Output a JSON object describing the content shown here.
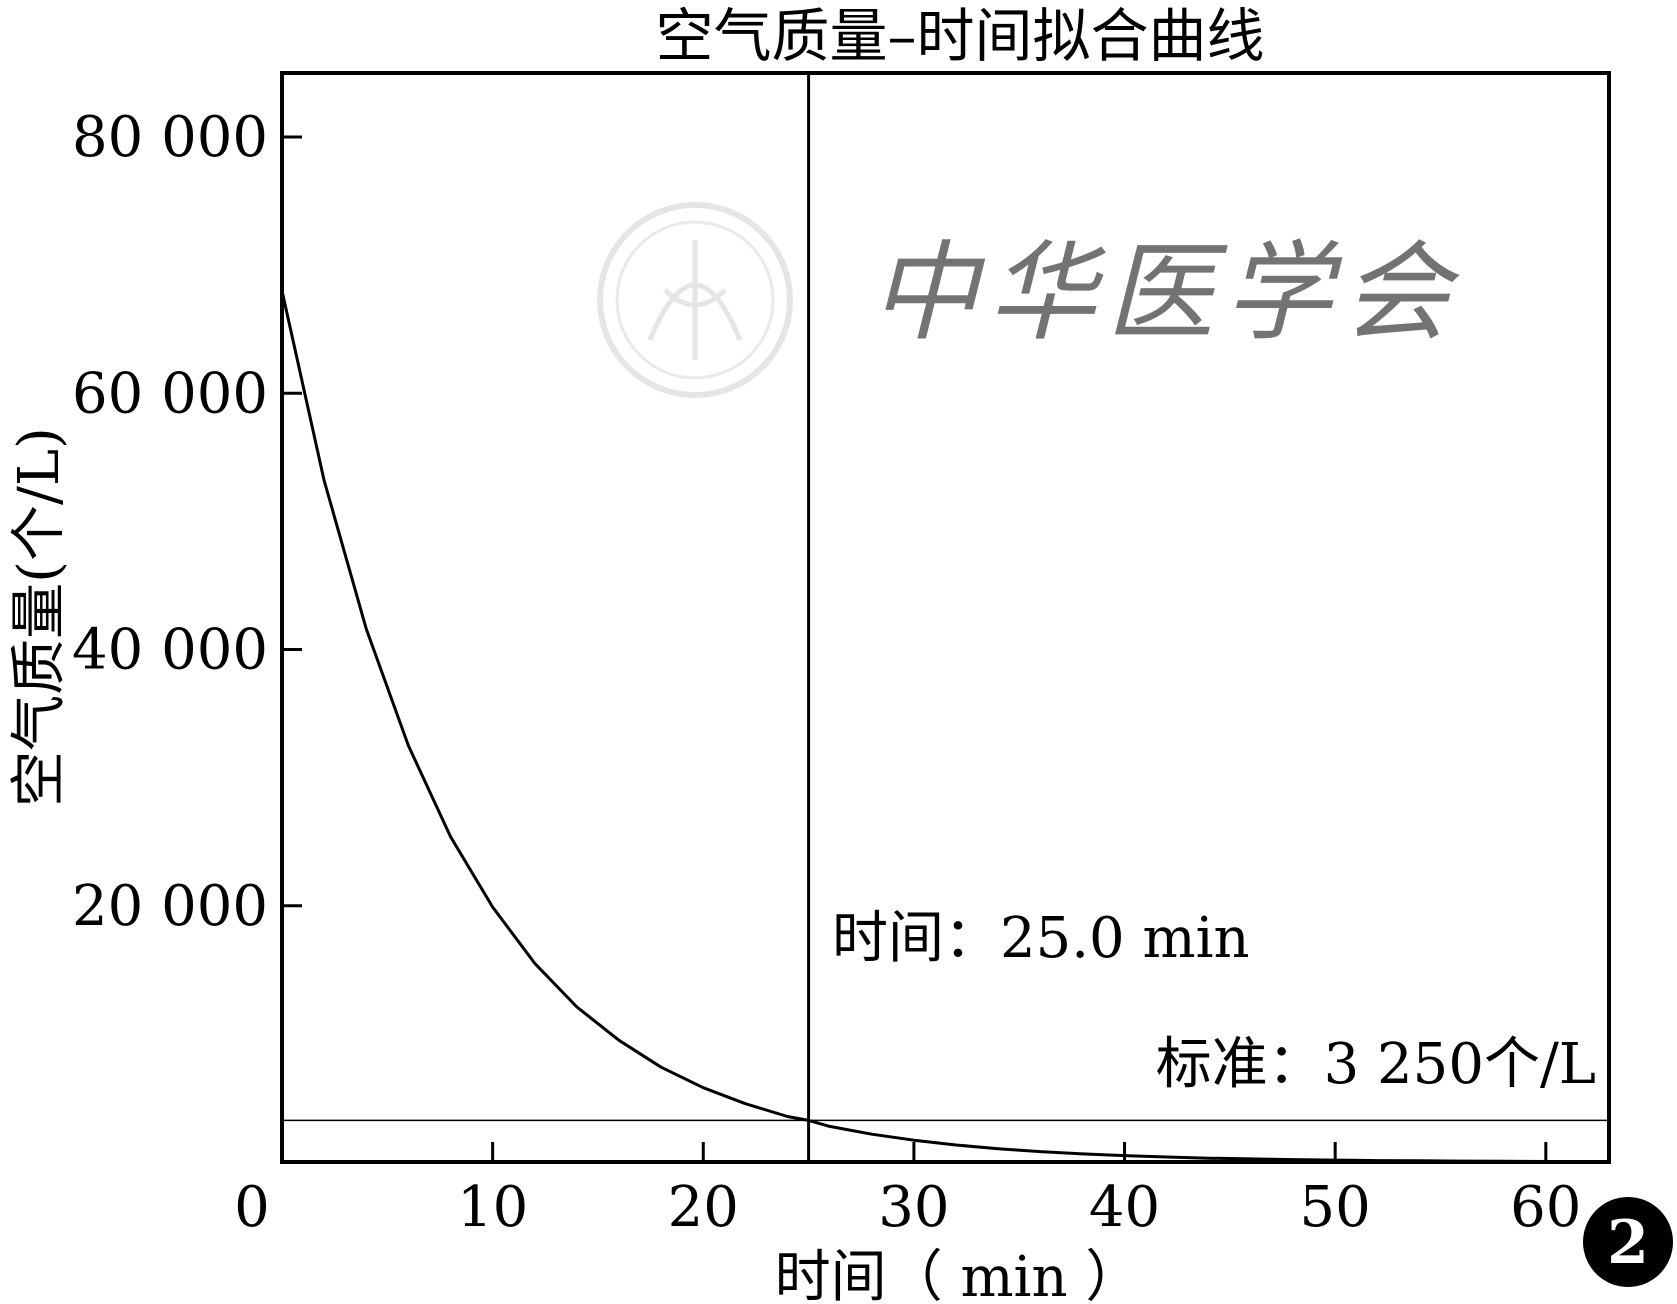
{
  "chart_data": {
    "type": "line",
    "title": "空气质量–时间拟合曲线",
    "xlabel": "时间（ min ）",
    "ylabel": "空气质量(个/L)",
    "xlim": [
      0,
      63
    ],
    "ylim": [
      0,
      85000
    ],
    "x_ticks": [
      0,
      10,
      20,
      30,
      40,
      50,
      60
    ],
    "x_tick_labels": [
      "0",
      "10",
      "20",
      "30",
      "40",
      "50",
      "60"
    ],
    "y_ticks": [
      20000,
      40000,
      60000,
      80000
    ],
    "y_tick_labels": [
      "20  000",
      "40 000",
      "60 000",
      "80 000"
    ],
    "grid": false,
    "series": [
      {
        "x": [
          0,
          2,
          4,
          6,
          8,
          10,
          12,
          14,
          16,
          18,
          20,
          22,
          24,
          25,
          26,
          28,
          30,
          32,
          34,
          36,
          38,
          40,
          42,
          44,
          46,
          48,
          50,
          52,
          54,
          56,
          58,
          60,
          62,
          63
        ],
        "values": [
          68000,
          53200,
          41600,
          32500,
          25400,
          19900,
          15500,
          12100,
          9500,
          7400,
          5800,
          4550,
          3550,
          3250,
          2780,
          2170,
          1700,
          1330,
          1040,
          810,
          630,
          500,
          390,
          300,
          240,
          190,
          145,
          110,
          90,
          70,
          55,
          40,
          32,
          30
        ]
      }
    ],
    "reference_lines": [
      {
        "orientation": "vertical",
        "x": 25.0
      },
      {
        "orientation": "horizontal",
        "y": 3250
      }
    ],
    "annotations": [
      {
        "text": "时间：25.0 min"
      },
      {
        "text": "标准：3 250个/L"
      }
    ],
    "panel_badge": "2",
    "watermark": {
      "text": "中华医学会"
    },
    "colors": {
      "line": "#000000",
      "badge_bg": "#000000",
      "badge_fg": "#ffffff",
      "watermark": "#d6d6d6"
    }
  }
}
